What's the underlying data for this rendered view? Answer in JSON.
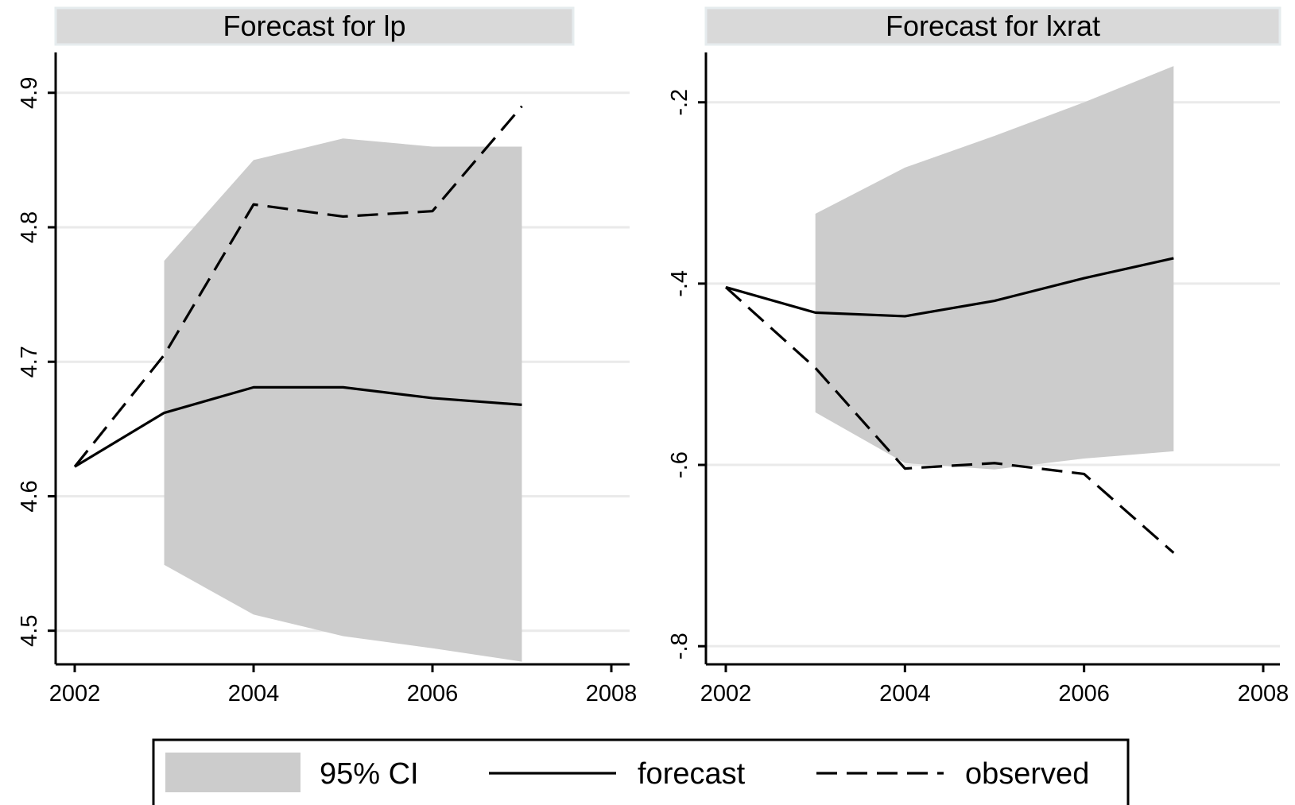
{
  "colors": {
    "band": "#cccccc",
    "title_strip": "#d9d9d9",
    "title_strip_border": "#e6ecee",
    "grid": "#eaeaea",
    "line": "#000000"
  },
  "legend": {
    "placement": "bottom",
    "items": [
      {
        "label": "95% CI",
        "kind": "band"
      },
      {
        "label": "forecast",
        "kind": "solid"
      },
      {
        "label": "observed",
        "kind": "dashed"
      }
    ]
  },
  "chart_data": [
    {
      "type": "line",
      "title": "Forecast for lp",
      "xlim": [
        2002,
        2008
      ],
      "ylim": [
        4.475,
        4.93
      ],
      "xticks": [
        2002,
        2004,
        2006,
        2008
      ],
      "yticks": [
        4.5,
        4.6,
        4.7,
        4.8,
        4.9
      ],
      "ytick_labels": [
        "4.5",
        "4.6",
        "4.7",
        "4.8",
        "4.9"
      ],
      "grid": true,
      "ci": {
        "x": [
          2003,
          2004,
          2005,
          2006,
          2007
        ],
        "lower": [
          4.549,
          4.512,
          4.496,
          4.487,
          4.477
        ],
        "upper": [
          4.775,
          4.85,
          4.866,
          4.86,
          4.86
        ]
      },
      "series": [
        {
          "name": "forecast",
          "style": "solid",
          "x": [
            2002,
            2003,
            2004,
            2005,
            2006,
            2007
          ],
          "y": [
            4.622,
            4.662,
            4.681,
            4.681,
            4.673,
            4.668
          ]
        },
        {
          "name": "observed",
          "style": "dashed",
          "x": [
            2002,
            2003,
            2004,
            2005,
            2006,
            2007
          ],
          "y": [
            4.622,
            4.705,
            4.817,
            4.808,
            4.812,
            4.89
          ]
        }
      ]
    },
    {
      "type": "line",
      "title": "Forecast for lxrat",
      "xlim": [
        2002,
        2008
      ],
      "ylim": [
        -0.82,
        -0.145
      ],
      "xticks": [
        2002,
        2004,
        2006,
        2008
      ],
      "yticks": [
        -0.8,
        -0.6,
        -0.4,
        -0.2
      ],
      "ytick_labels": [
        "-.8",
        "-.6",
        "-.4",
        "-.2"
      ],
      "grid": true,
      "ci": {
        "x": [
          2003,
          2004,
          2005,
          2006,
          2007
        ],
        "lower": [
          -0.542,
          -0.598,
          -0.605,
          -0.593,
          -0.585
        ],
        "upper": [
          -0.323,
          -0.272,
          -0.237,
          -0.2,
          -0.16
        ]
      },
      "series": [
        {
          "name": "forecast",
          "style": "solid",
          "x": [
            2002,
            2003,
            2004,
            2005,
            2006,
            2007
          ],
          "y": [
            -0.404,
            -0.432,
            -0.436,
            -0.419,
            -0.394,
            -0.372
          ]
        },
        {
          "name": "observed",
          "style": "dashed",
          "x": [
            2002,
            2003,
            2004,
            2005,
            2006,
            2007
          ],
          "y": [
            -0.404,
            -0.493,
            -0.604,
            -0.598,
            -0.61,
            -0.697
          ]
        }
      ]
    }
  ]
}
